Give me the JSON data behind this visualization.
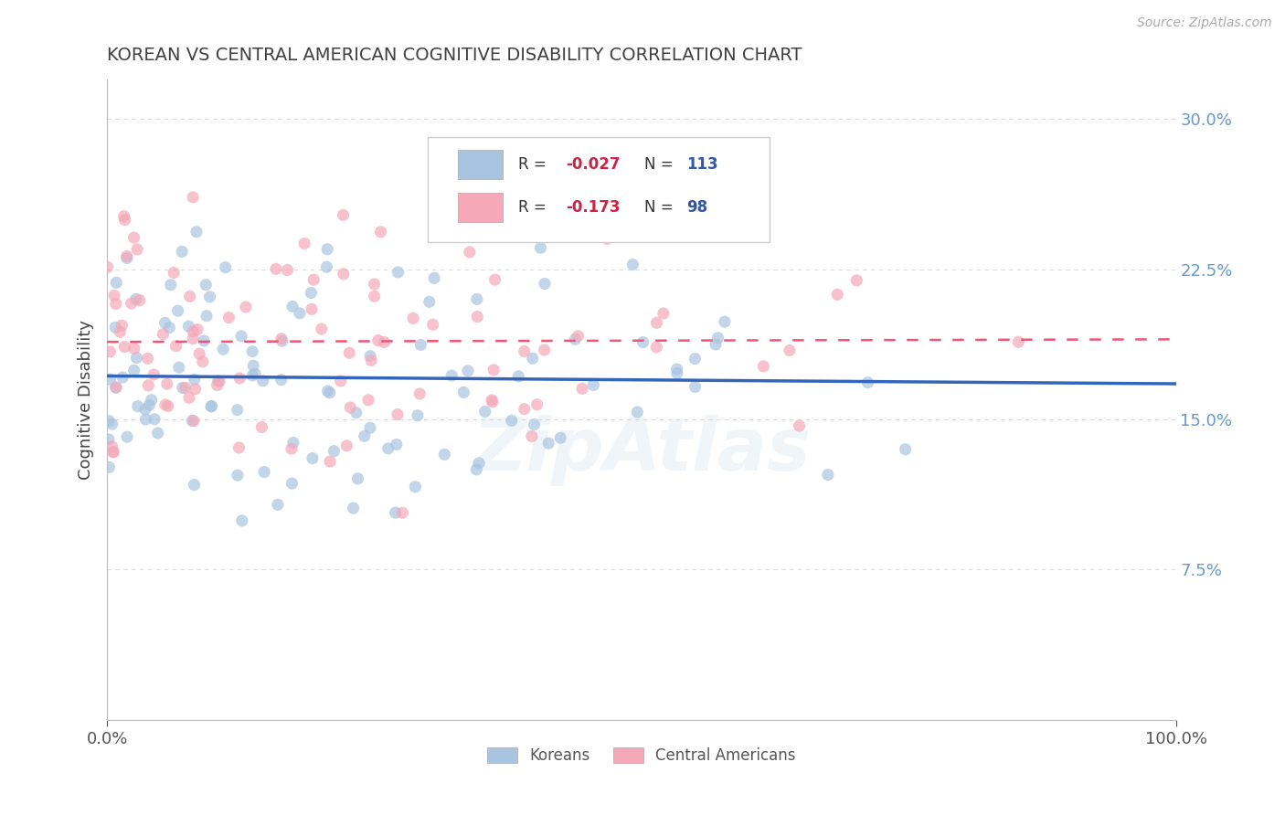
{
  "title": "KOREAN VS CENTRAL AMERICAN COGNITIVE DISABILITY CORRELATION CHART",
  "source": "Source: ZipAtlas.com",
  "ylabel": "Cognitive Disability",
  "xlim": [
    0,
    1
  ],
  "ylim": [
    0,
    0.32
  ],
  "yticks": [
    0.075,
    0.15,
    0.225,
    0.3
  ],
  "ytick_labels": [
    "7.5%",
    "15.0%",
    "22.5%",
    "30.0%"
  ],
  "xticks": [
    0.0,
    1.0
  ],
  "xtick_labels": [
    "0.0%",
    "100.0%"
  ],
  "korean_R": -0.027,
  "korean_N": 113,
  "central_R": -0.173,
  "central_N": 98,
  "korean_color": "#a8c4e0",
  "central_color": "#f4a8b8",
  "korean_line_color": "#3366bb",
  "central_line_color": "#ee5577",
  "legend_label_korean": "Koreans",
  "legend_label_central": "Central Americans",
  "title_color": "#404040",
  "ytick_color": "#6699cc",
  "watermark": "ZipAtlas",
  "background_color": "#ffffff",
  "grid_color": "#cccccc",
  "seed": 42
}
